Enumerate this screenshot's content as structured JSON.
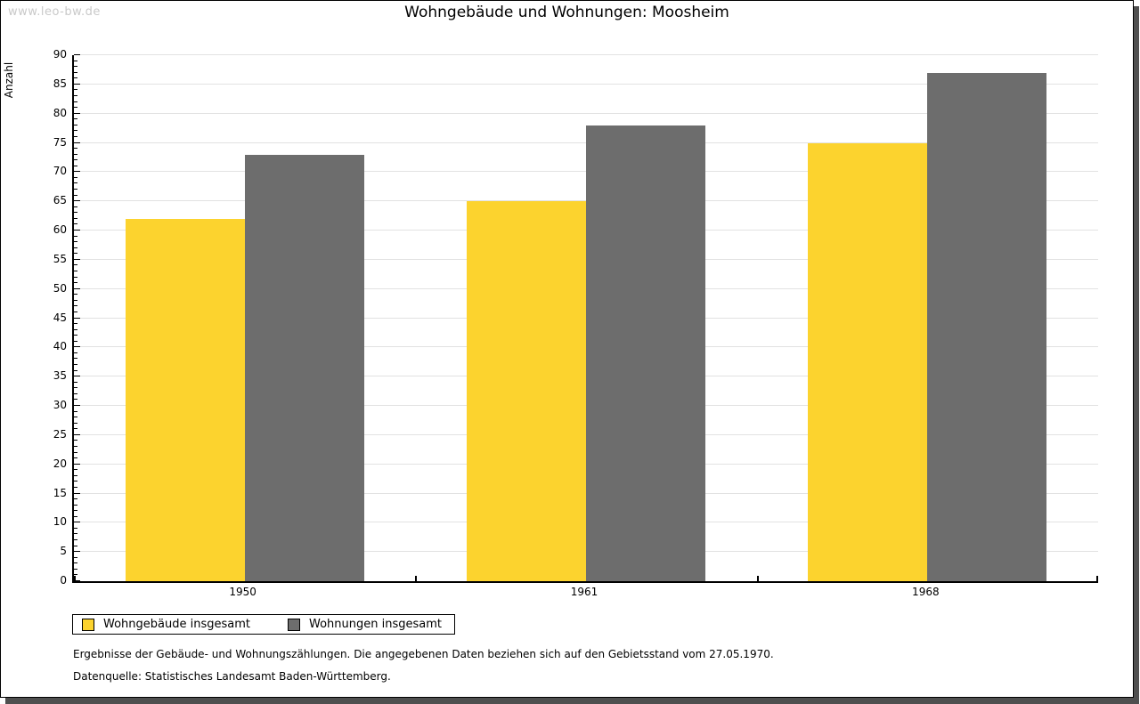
{
  "watermark": "www.leo-bw.de",
  "title": "Wohngebäude und Wohnungen: Moosheim",
  "chart_data": {
    "type": "bar",
    "title": "Wohngebäude und Wohnungen: Moosheim",
    "ylabel": "Anzahl",
    "xlabel": "",
    "categories": [
      "1950",
      "1961",
      "1968"
    ],
    "series": [
      {
        "name": "Wohngebäude insgesamt",
        "color": "#fcd32e",
        "values": [
          62,
          65,
          75
        ]
      },
      {
        "name": "Wohnungen insgesamt",
        "color": "#6d6d6d",
        "values": [
          73,
          78,
          87
        ]
      }
    ],
    "ylim": [
      0,
      90
    ],
    "ytick_step": 5,
    "ytick_minor_step": 1,
    "grid": true,
    "gridline_color": "#e2e2e2",
    "legend_position": "bottom-left"
  },
  "footnotes": {
    "line1": "Ergebnisse der Gebäude- und Wohnungszählungen. Die angegebenen Daten beziehen sich auf den Gebietsstand vom 27.05.1970.",
    "line2": "Datenquelle: Statistisches Landesamt Baden-Württemberg."
  }
}
